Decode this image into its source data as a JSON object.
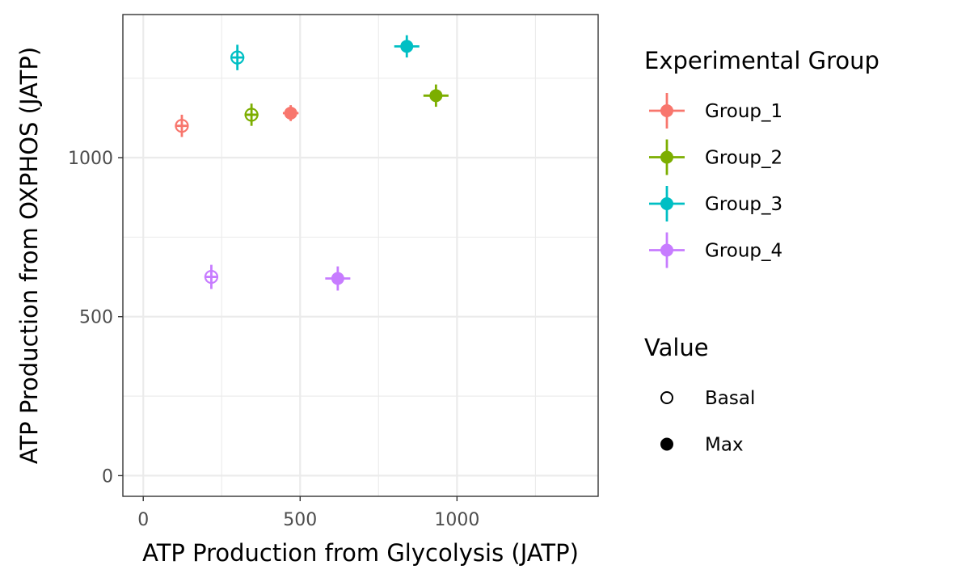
{
  "chart_data": {
    "type": "scatter",
    "xlabel": "ATP Production from Glycolysis (JATP)",
    "ylabel": "ATP Production from OXPHOS (JATP)",
    "xlim": [
      -65,
      1450
    ],
    "ylim": [
      -65,
      1450
    ],
    "x_ticks": [
      0,
      500,
      1000
    ],
    "y_ticks": [
      0,
      500,
      1000
    ],
    "grid": true,
    "legend_position": "right",
    "legends": [
      {
        "title": "Experimental Group",
        "entries": [
          {
            "label": "Group_1",
            "color": "#F8766D"
          },
          {
            "label": "Group_2",
            "color": "#7CAE00"
          },
          {
            "label": "Group_3",
            "color": "#00BFC4"
          },
          {
            "label": "Group_4",
            "color": "#C77CFF"
          }
        ]
      },
      {
        "title": "Value",
        "entries": [
          {
            "label": "Basal",
            "shape": "open-circle"
          },
          {
            "label": "Max",
            "shape": "filled-circle"
          }
        ]
      }
    ],
    "series": [
      {
        "group": "Group_1",
        "value": "Basal",
        "color": "#F8766D",
        "x": 123,
        "y": 1100,
        "x_err": 22,
        "y_err": 35
      },
      {
        "group": "Group_1",
        "value": "Max",
        "color": "#F8766D",
        "x": 470,
        "y": 1140,
        "x_err": 25,
        "y_err": 25
      },
      {
        "group": "Group_2",
        "value": "Basal",
        "color": "#7CAE00",
        "x": 345,
        "y": 1135,
        "x_err": 22,
        "y_err": 35
      },
      {
        "group": "Group_2",
        "value": "Max",
        "color": "#7CAE00",
        "x": 933,
        "y": 1195,
        "x_err": 40,
        "y_err": 35
      },
      {
        "group": "Group_3",
        "value": "Basal",
        "color": "#00BFC4",
        "x": 300,
        "y": 1315,
        "x_err": 22,
        "y_err": 40
      },
      {
        "group": "Group_3",
        "value": "Max",
        "color": "#00BFC4",
        "x": 840,
        "y": 1350,
        "x_err": 40,
        "y_err": 35
      },
      {
        "group": "Group_4",
        "value": "Basal",
        "color": "#C77CFF",
        "x": 217,
        "y": 625,
        "x_err": 22,
        "y_err": 38
      },
      {
        "group": "Group_4",
        "value": "Max",
        "color": "#C77CFF",
        "x": 620,
        "y": 620,
        "x_err": 40,
        "y_err": 38
      }
    ]
  }
}
